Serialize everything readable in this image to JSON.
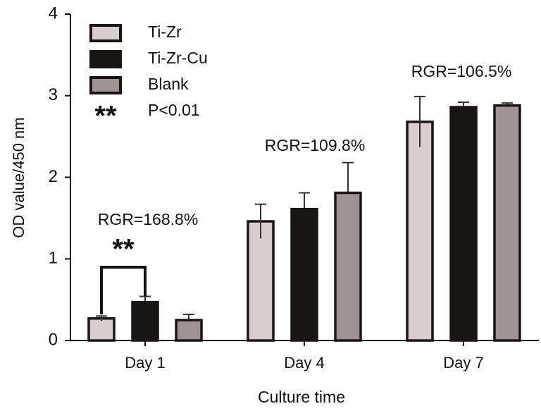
{
  "chart_data": {
    "type": "bar",
    "x_label": "Culture time",
    "y_label": "OD value/450 nm",
    "categories": [
      "Day 1",
      "Day 4",
      "Day 7"
    ],
    "series": [
      {
        "name": "Ti-Zr",
        "color": "#d6cfcf",
        "values": [
          0.27,
          1.46,
          2.68
        ],
        "errors": [
          0.03,
          0.21,
          0.31
        ]
      },
      {
        "name": "Ti-Zr-Cu",
        "color": "#1a1515",
        "values": [
          0.47,
          1.61,
          2.86
        ],
        "errors": [
          0.07,
          0.2,
          0.06
        ]
      },
      {
        "name": "Blank",
        "color": "#9c9393",
        "values": [
          0.25,
          1.81,
          2.88
        ],
        "errors": [
          0.07,
          0.37,
          0.03
        ]
      }
    ],
    "annotations": [
      "RGR=168.8%",
      "RGR=109.8%",
      "RGR=106.5%"
    ],
    "significance_marker": "**",
    "significance_label": "P<0.01",
    "ylim": [
      0,
      4
    ],
    "yticks": [
      0,
      1,
      2,
      3,
      4
    ]
  }
}
